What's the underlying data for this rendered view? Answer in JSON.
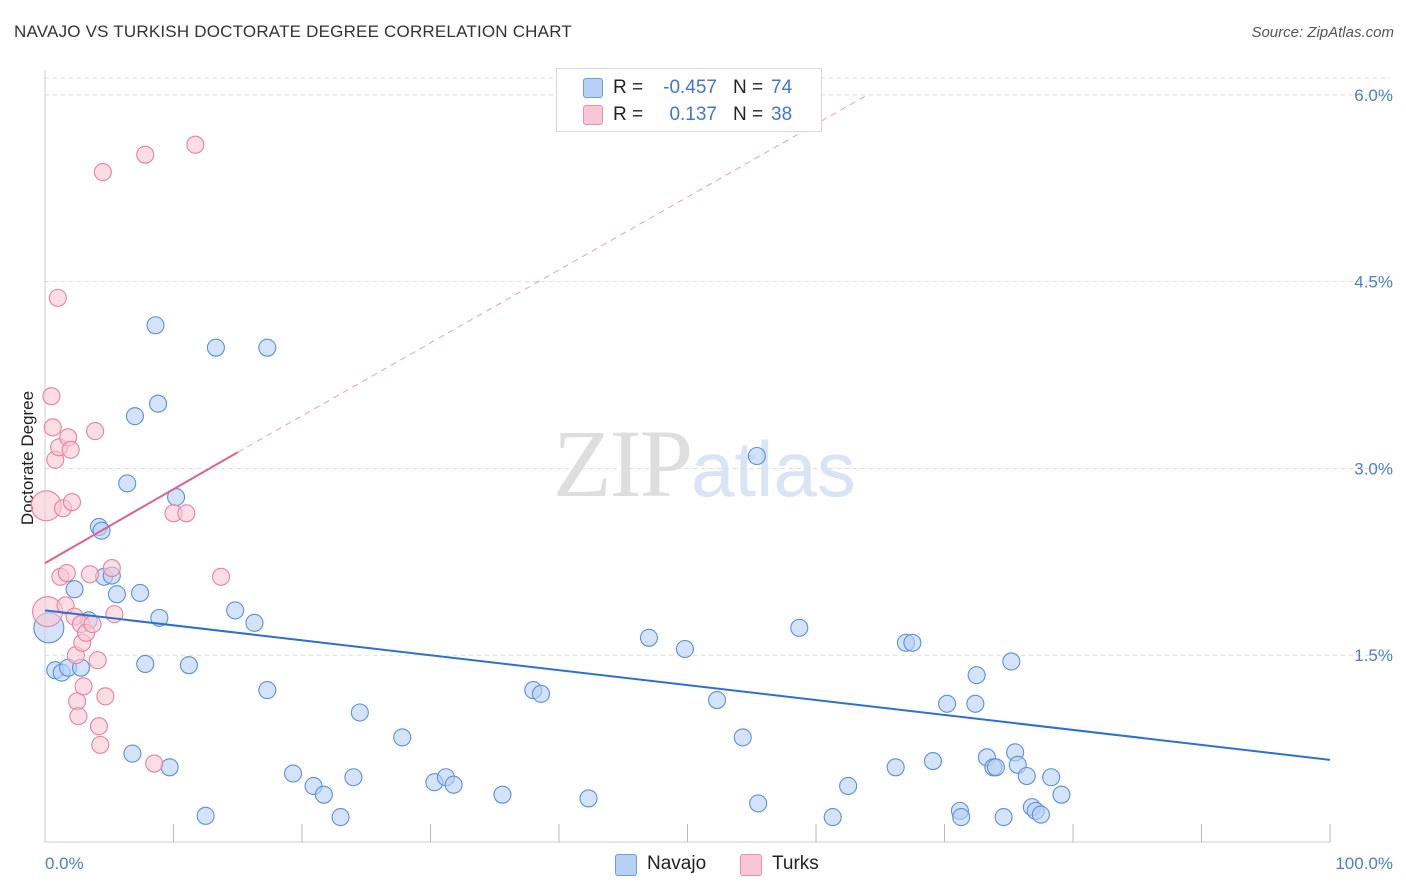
{
  "title": "NAVAJO VS TURKISH DOCTORATE DEGREE CORRELATION CHART",
  "source": "Source: ZipAtlas.com",
  "watermark": {
    "part1": "ZIP",
    "part2": "atlas"
  },
  "legend": {
    "rows": [
      {
        "name": "Navajo",
        "r_label": "R =",
        "r_value": "-0.457",
        "n_label": "N =",
        "n_value": "74",
        "fill": "#b7d0f3",
        "stroke": "#6c9be0"
      },
      {
        "name": "Turks",
        "r_label": "R =",
        "r_value": "0.137",
        "n_label": "N =",
        "n_value": "38",
        "fill": "#f8c6d6",
        "stroke": "#e690ac"
      }
    ]
  },
  "bottom_legend": [
    {
      "label": "Navajo",
      "fill": "#b7d0f3",
      "stroke": "#6c9be0"
    },
    {
      "label": "Turks",
      "fill": "#f8c6d6",
      "stroke": "#e690ac"
    }
  ],
  "chart_data": {
    "type": "scatter",
    "title": "NAVAJO VS TURKISH DOCTORATE DEGREE CORRELATION CHART",
    "xlabel": "",
    "ylabel": "Doctorate Degree",
    "xlim": [
      0,
      100
    ],
    "ylim": [
      0,
      6.2
    ],
    "y_ticks": [
      1.5,
      3.0,
      4.5,
      6.0
    ],
    "y_tick_labels": [
      "1.5%",
      "3.0%",
      "4.5%",
      "6.0%"
    ],
    "x_tick_labels": [
      "0.0%",
      "100.0%"
    ],
    "grid": true,
    "legend_position": "top-center",
    "series": [
      {
        "name": "Navajo",
        "color": "#5b8fdc",
        "fill": "#b7d0f3",
        "trend": {
          "x0": 0,
          "y0": 1.86,
          "x1": 100,
          "y1": 0.66,
          "color": "#2f6fd0",
          "dashed": false
        },
        "points": [
          [
            0.3,
            1.72
          ],
          [
            0.8,
            1.38
          ],
          [
            1.3,
            1.36
          ],
          [
            1.8,
            1.4
          ],
          [
            2.3,
            2.03
          ],
          [
            2.8,
            1.4
          ],
          [
            3.4,
            1.78
          ],
          [
            4.2,
            2.53
          ],
          [
            4.4,
            2.5
          ],
          [
            4.6,
            2.13
          ],
          [
            5.2,
            2.14
          ],
          [
            5.6,
            1.99
          ],
          [
            6.4,
            2.88
          ],
          [
            6.8,
            0.71
          ],
          [
            7.0,
            3.42
          ],
          [
            7.4,
            2.0
          ],
          [
            7.8,
            1.43
          ],
          [
            8.8,
            3.52
          ],
          [
            9.7,
            0.6
          ],
          [
            10.2,
            2.77
          ],
          [
            11.2,
            1.42
          ],
          [
            8.9,
            1.8
          ],
          [
            8.6,
            4.15
          ],
          [
            12.5,
            0.21
          ],
          [
            13.3,
            3.97
          ],
          [
            14.8,
            1.86
          ],
          [
            16.3,
            1.76
          ],
          [
            17.3,
            3.97
          ],
          [
            17.3,
            1.22
          ],
          [
            19.3,
            0.55
          ],
          [
            20.9,
            0.45
          ],
          [
            21.7,
            0.38
          ],
          [
            23.0,
            0.2
          ],
          [
            24.0,
            0.52
          ],
          [
            24.5,
            1.04
          ],
          [
            27.8,
            0.84
          ],
          [
            30.3,
            0.48
          ],
          [
            31.2,
            0.52
          ],
          [
            31.8,
            0.46
          ],
          [
            35.6,
            0.38
          ],
          [
            38.0,
            1.22
          ],
          [
            38.6,
            1.19
          ],
          [
            42.3,
            0.35
          ],
          [
            47.0,
            1.64
          ],
          [
            49.8,
            1.55
          ],
          [
            52.3,
            1.14
          ],
          [
            54.3,
            0.84
          ],
          [
            55.5,
            0.31
          ],
          [
            55.4,
            3.1
          ],
          [
            58.7,
            1.72
          ],
          [
            61.3,
            0.2
          ],
          [
            62.5,
            0.45
          ],
          [
            66.2,
            0.6
          ],
          [
            67.0,
            1.6
          ],
          [
            67.5,
            1.6
          ],
          [
            69.1,
            0.65
          ],
          [
            70.2,
            1.11
          ],
          [
            71.2,
            0.25
          ],
          [
            71.3,
            0.2
          ],
          [
            72.4,
            1.11
          ],
          [
            72.5,
            1.34
          ],
          [
            73.3,
            0.68
          ],
          [
            73.8,
            0.6
          ],
          [
            74.0,
            0.6
          ],
          [
            74.6,
            0.2
          ],
          [
            75.2,
            1.45
          ],
          [
            75.5,
            0.72
          ],
          [
            75.7,
            0.62
          ],
          [
            76.4,
            0.53
          ],
          [
            76.8,
            0.28
          ],
          [
            77.1,
            0.25
          ],
          [
            77.5,
            0.22
          ],
          [
            78.3,
            0.52
          ],
          [
            79.1,
            0.38
          ]
        ]
      },
      {
        "name": "Turks",
        "color": "#e8819f",
        "fill": "#f8c6d6",
        "trend": {
          "x0": 0,
          "y0": 2.24,
          "x1": 15,
          "y1": 3.13,
          "x2": 64,
          "y2": 6.0,
          "color": "#e0608c",
          "dashed_extension": true
        },
        "points": [
          [
            0.1,
            2.7
          ],
          [
            0.2,
            1.85
          ],
          [
            0.5,
            3.58
          ],
          [
            0.6,
            3.33
          ],
          [
            0.8,
            3.07
          ],
          [
            1.0,
            4.37
          ],
          [
            1.1,
            3.17
          ],
          [
            1.2,
            2.13
          ],
          [
            1.4,
            2.68
          ],
          [
            1.6,
            1.9
          ],
          [
            1.7,
            2.16
          ],
          [
            1.8,
            3.25
          ],
          [
            2.0,
            3.15
          ],
          [
            2.1,
            2.73
          ],
          [
            2.3,
            1.81
          ],
          [
            2.4,
            1.5
          ],
          [
            2.5,
            1.13
          ],
          [
            2.6,
            1.01
          ],
          [
            2.8,
            1.75
          ],
          [
            2.9,
            1.6
          ],
          [
            3.0,
            1.25
          ],
          [
            3.2,
            1.68
          ],
          [
            3.5,
            2.15
          ],
          [
            3.7,
            1.75
          ],
          [
            3.9,
            3.3
          ],
          [
            4.1,
            1.46
          ],
          [
            4.2,
            0.93
          ],
          [
            4.3,
            0.78
          ],
          [
            4.5,
            5.38
          ],
          [
            4.7,
            1.17
          ],
          [
            5.2,
            2.2
          ],
          [
            5.4,
            1.83
          ],
          [
            7.8,
            5.52
          ],
          [
            8.5,
            0.63
          ],
          [
            10.0,
            2.64
          ],
          [
            11.0,
            2.64
          ],
          [
            11.7,
            5.6
          ],
          [
            13.7,
            2.13
          ]
        ]
      }
    ]
  }
}
